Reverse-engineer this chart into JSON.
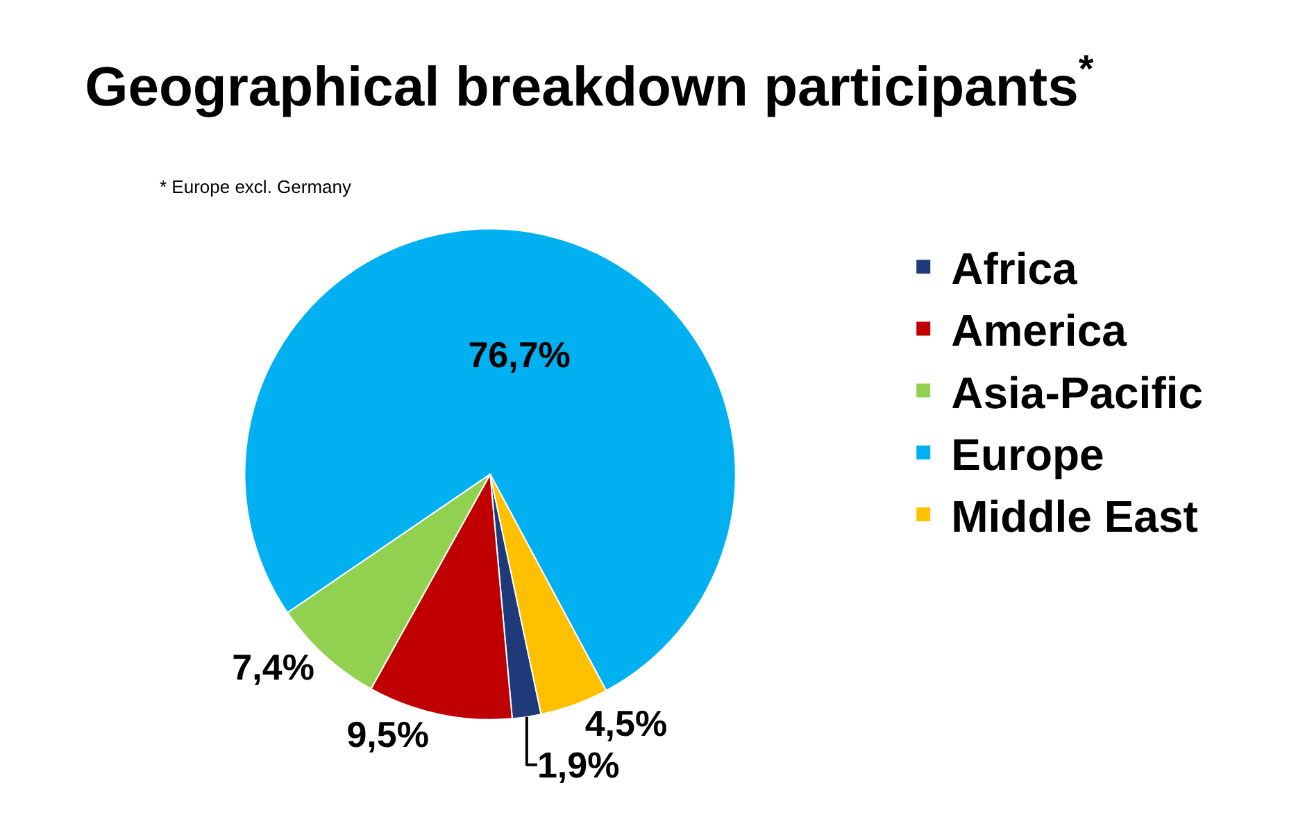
{
  "chart_data": {
    "type": "pie",
    "title": "Geographical breakdown participants$^{*}$",
    "annotations": [
      "* Europe excl. Germany"
    ],
    "categories": [
      "Africa",
      "America",
      "Asia-Pacific",
      "Europe",
      "Middle East"
    ],
    "values": [
      1.9,
      9.5,
      7.4,
      76.7,
      4.5
    ],
    "colors": [
      "#1f3a7a",
      "#c00000",
      "#92d050",
      "#00b0f0",
      "#ffc000"
    ],
    "value_labels": [
      "1,9%",
      "9,5%",
      "7,4%",
      "76,7%",
      "4,5%"
    ],
    "legend": "right"
  }
}
